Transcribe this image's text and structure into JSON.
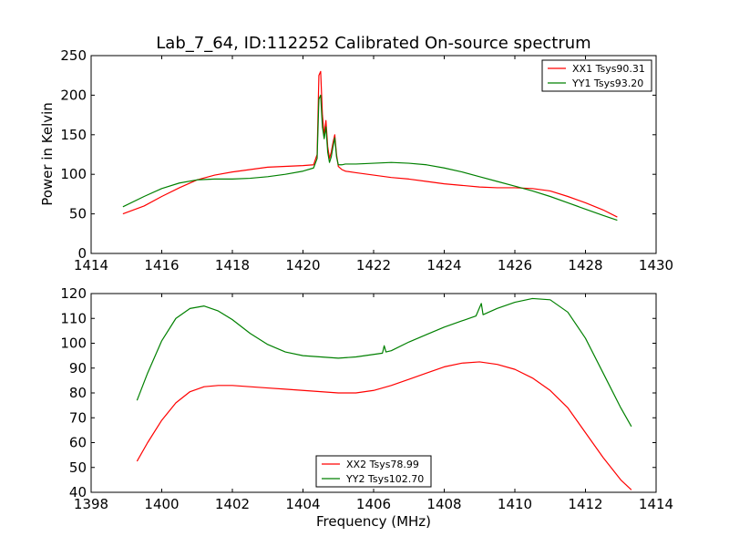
{
  "chart_data": [
    {
      "type": "line",
      "title": "Lab_7_64, ID:112252 Calibrated On-source spectrum",
      "xlabel": "",
      "ylabel": "Power in Kelvin",
      "xlim": [
        1414,
        1430
      ],
      "ylim": [
        0,
        250
      ],
      "xticks": [
        1414,
        1416,
        1418,
        1420,
        1422,
        1424,
        1426,
        1428,
        1430
      ],
      "yticks": [
        0,
        50,
        100,
        150,
        200,
        250
      ],
      "grid": false,
      "legend": "top-right",
      "series": [
        {
          "name": "XX1 Tsys90.31",
          "color": "#ff0000",
          "x": [
            1414.9,
            1415.5,
            1416.0,
            1416.5,
            1417.0,
            1417.5,
            1418.0,
            1418.5,
            1419.0,
            1419.5,
            1420.0,
            1420.3,
            1420.4,
            1420.45,
            1420.5,
            1420.55,
            1420.6,
            1420.65,
            1420.7,
            1420.75,
            1420.8,
            1420.85,
            1420.9,
            1420.95,
            1421.0,
            1421.1,
            1421.2,
            1421.5,
            1422.0,
            1422.5,
            1423.0,
            1423.5,
            1424.0,
            1424.5,
            1425.0,
            1425.5,
            1426.0,
            1426.5,
            1427.0,
            1427.5,
            1428.0,
            1428.5,
            1428.9
          ],
          "values": [
            50,
            60,
            72,
            83,
            93,
            99,
            103,
            106,
            109,
            110,
            111,
            112,
            125,
            225,
            230,
            175,
            150,
            168,
            135,
            120,
            128,
            140,
            150,
            125,
            110,
            106,
            104,
            102,
            99,
            96,
            94,
            91,
            88,
            86,
            84,
            83,
            83,
            82,
            79,
            72,
            64,
            55,
            46
          ]
        },
        {
          "name": "YY1 Tsys93.20",
          "color": "#008000",
          "x": [
            1414.9,
            1415.5,
            1416.0,
            1416.5,
            1417.0,
            1417.5,
            1418.0,
            1418.5,
            1419.0,
            1419.5,
            1420.0,
            1420.3,
            1420.4,
            1420.45,
            1420.5,
            1420.55,
            1420.6,
            1420.65,
            1420.7,
            1420.75,
            1420.8,
            1420.85,
            1420.9,
            1420.95,
            1421.0,
            1421.1,
            1421.2,
            1421.5,
            1422.0,
            1422.5,
            1423.0,
            1423.5,
            1424.0,
            1424.5,
            1425.0,
            1425.5,
            1426.0,
            1426.5,
            1427.0,
            1427.5,
            1428.0,
            1428.5,
            1428.9
          ],
          "values": [
            59,
            72,
            82,
            89,
            93,
            94,
            94,
            95,
            97,
            100,
            104,
            108,
            120,
            195,
            200,
            160,
            145,
            160,
            128,
            115,
            122,
            135,
            146,
            122,
            112,
            112,
            113,
            113,
            114,
            115,
            114,
            112,
            108,
            103,
            97,
            91,
            85,
            79,
            72,
            64,
            56,
            48,
            42
          ]
        }
      ]
    },
    {
      "type": "line",
      "title": "",
      "xlabel": "Frequency (MHz)",
      "ylabel": "",
      "xlim": [
        1398,
        1414
      ],
      "ylim": [
        40,
        120
      ],
      "xticks": [
        1398,
        1400,
        1402,
        1404,
        1406,
        1408,
        1410,
        1412,
        1414
      ],
      "yticks": [
        40,
        50,
        60,
        70,
        80,
        90,
        100,
        110,
        120
      ],
      "grid": false,
      "legend": "bottom-center",
      "series": [
        {
          "name": "XX2 Tsys78.99",
          "color": "#ff0000",
          "x": [
            1399.3,
            1399.6,
            1400.0,
            1400.4,
            1400.8,
            1401.2,
            1401.6,
            1402.0,
            1402.5,
            1403.0,
            1403.5,
            1404.0,
            1404.5,
            1405.0,
            1405.5,
            1406.0,
            1406.5,
            1407.0,
            1407.5,
            1408.0,
            1408.5,
            1409.0,
            1409.5,
            1410.0,
            1410.5,
            1411.0,
            1411.5,
            1412.0,
            1412.5,
            1413.0,
            1413.3
          ],
          "values": [
            52.5,
            60,
            69,
            76,
            80.5,
            82.5,
            83,
            83,
            82.5,
            82,
            81.5,
            81,
            80.5,
            80,
            80,
            81,
            83,
            85.5,
            88,
            90.5,
            92,
            92.5,
            91.5,
            89.5,
            86,
            81,
            74,
            64,
            54,
            45,
            41
          ]
        },
        {
          "name": "YY2 Tsys102.70",
          "color": "#008000",
          "x": [
            1399.3,
            1399.6,
            1400.0,
            1400.4,
            1400.8,
            1401.2,
            1401.6,
            1402.0,
            1402.5,
            1403.0,
            1403.5,
            1404.0,
            1404.5,
            1405.0,
            1405.5,
            1406.0,
            1406.25,
            1406.3,
            1406.35,
            1406.5,
            1407.0,
            1407.5,
            1408.0,
            1408.5,
            1408.9,
            1409.05,
            1409.1,
            1409.5,
            1410.0,
            1410.5,
            1411.0,
            1411.5,
            1412.0,
            1412.5,
            1413.0,
            1413.3
          ],
          "values": [
            77,
            88,
            101,
            110,
            114,
            115,
            113,
            109.5,
            104,
            99.5,
            96.5,
            95,
            94.5,
            94,
            94.5,
            95.5,
            96,
            99,
            96.5,
            97,
            100.5,
            103.5,
            106.5,
            109,
            111,
            116,
            111.5,
            114,
            116.5,
            118,
            117.5,
            112.5,
            102,
            88,
            74,
            66.5
          ]
        }
      ]
    }
  ]
}
